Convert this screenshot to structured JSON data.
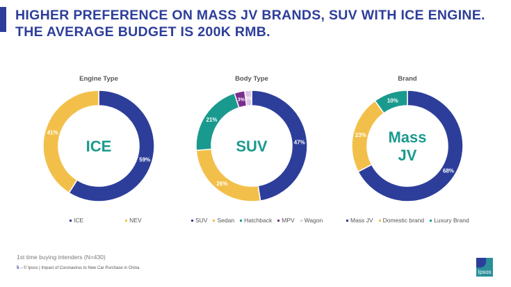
{
  "title": "HIGHER PREFERENCE ON MASS JV BRANDS, SUV WITH ICE ENGINE. THE AVERAGE BUDGET IS 200K RMB.",
  "chart_data": [
    {
      "type": "pie",
      "title": "Engine Type",
      "center_label": "ICE",
      "categories": [
        "ICE",
        "NEV"
      ],
      "values": [
        59,
        41
      ],
      "labels": [
        "59%",
        "41%"
      ],
      "colors": [
        "#2d3e9a",
        "#f2c04a"
      ]
    },
    {
      "type": "pie",
      "title": "Body Type",
      "center_label": "SUV",
      "categories": [
        "SUV",
        "Sedan",
        "Hatchback",
        "MPV",
        "Wagon"
      ],
      "values": [
        47,
        26,
        21,
        3,
        2
      ],
      "labels": [
        "47%",
        "26%",
        "21%",
        "3%",
        "2%"
      ],
      "colors": [
        "#2d3e9a",
        "#f2c04a",
        "#1a9a8e",
        "#7b2d8e",
        "#dcc6e6"
      ]
    },
    {
      "type": "pie",
      "title": "Brand",
      "center_label": "Mass JV",
      "categories": [
        "Mass JV",
        "Domestic brand",
        "Luxury Brand"
      ],
      "values": [
        68,
        23,
        10
      ],
      "labels": [
        "68%",
        "23%",
        "10%"
      ],
      "colors": [
        "#2d3e9a",
        "#f2c04a",
        "#1a9a8e"
      ]
    }
  ],
  "note": "1st time buying intenders (N=430)",
  "footer": {
    "page": "5",
    "text": "© Ipsos | Impact of Coronavirus to New Car Purchase in China"
  },
  "logo": "Ipsos"
}
